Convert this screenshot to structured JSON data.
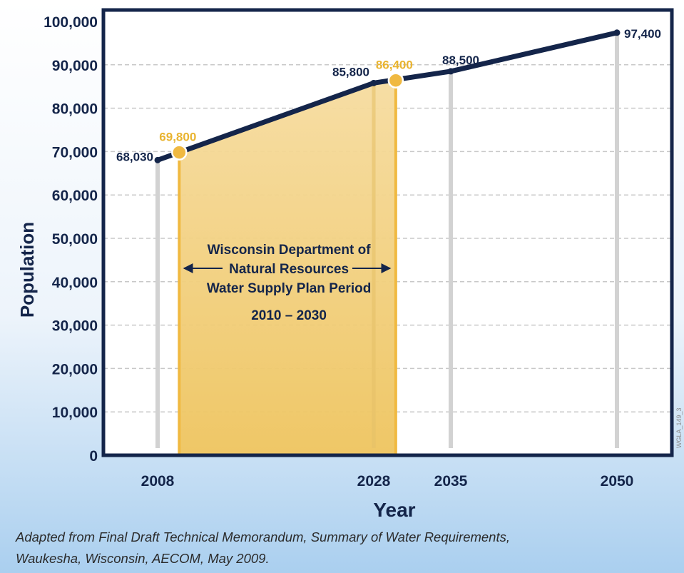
{
  "chart_data": {
    "type": "line",
    "xlabel": "Year",
    "ylabel": "Population",
    "ylim": [
      0,
      100000
    ],
    "yticks": [
      "0",
      "10,000",
      "20,000",
      "30,000",
      "40,000",
      "50,000",
      "60,000",
      "70,000",
      "80,000",
      "90,000",
      "100,000"
    ],
    "xticks": [
      "2008",
      "2028",
      "2035",
      "2050"
    ],
    "grid": true,
    "series": [
      {
        "x": [
          2008,
          2028,
          2035,
          2050
        ],
        "values": [
          68030,
          85800,
          88500,
          97400
        ],
        "labels": [
          "68,030",
          "85,800",
          "88,500",
          "97,400"
        ],
        "color": "#14254a"
      }
    ],
    "highlight_points": [
      {
        "x": 2010,
        "value": 69800,
        "label": "69,800"
      },
      {
        "x": 2030,
        "value": 86400,
        "label": "86,400"
      }
    ],
    "highlight_color": "#f0b941",
    "shaded_period": {
      "start": 2010,
      "end": 2030,
      "lines": [
        "Wisconsin Department of",
        "Natural Resources",
        "Water Supply Plan Period"
      ],
      "range_label": "2010 – 2030"
    },
    "watermark": "WGLA_149_3"
  },
  "caption": {
    "line1": "Adapted from Final Draft Technical Memorandum, Summary of Water Requirements,",
    "line2": "Waukesha, Wisconsin, AECOM, May 2009."
  }
}
